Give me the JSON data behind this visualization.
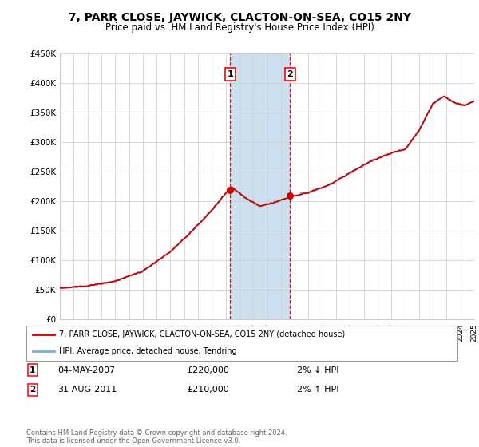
{
  "title": "7, PARR CLOSE, JAYWICK, CLACTON-ON-SEA, CO15 2NY",
  "subtitle": "Price paid vs. HM Land Registry's House Price Index (HPI)",
  "ylim": [
    0,
    450000
  ],
  "yticks": [
    0,
    50000,
    100000,
    150000,
    200000,
    250000,
    300000,
    350000,
    400000,
    450000
  ],
  "ytick_labels": [
    "£0",
    "£50K",
    "£100K",
    "£150K",
    "£200K",
    "£250K",
    "£300K",
    "£350K",
    "£400K",
    "£450K"
  ],
  "x_start_year": 1995,
  "x_end_year": 2025,
  "transaction1_year": 2007.34,
  "transaction2_year": 2011.66,
  "transaction1_price": 220000,
  "transaction2_price": 210000,
  "transaction1_label": "04-MAY-2007",
  "transaction2_label": "31-AUG-2011",
  "transaction1_pct": "2% ↓ HPI",
  "transaction2_pct": "2% ↑ HPI",
  "line_color_red": "#cc0000",
  "line_color_blue": "#7ab0d4",
  "shade_color": "#cce0f0",
  "grid_color": "#cccccc",
  "background_color": "#ffffff",
  "legend_label_red": "7, PARR CLOSE, JAYWICK, CLACTON-ON-SEA, CO15 2NY (detached house)",
  "legend_label_blue": "HPI: Average price, detached house, Tendring",
  "footer_text": "Contains HM Land Registry data © Crown copyright and database right 2024.\nThis data is licensed under the Open Government Licence v3.0.",
  "key_years": [
    1995.0,
    1997.0,
    1999.0,
    2001.0,
    2003.0,
    2004.5,
    2006.0,
    2007.4,
    2008.5,
    2009.5,
    2010.5,
    2011.7,
    2013.0,
    2014.5,
    2016.0,
    2017.5,
    2019.0,
    2020.0,
    2021.0,
    2022.0,
    2022.8,
    2023.5,
    2024.3,
    2025.0
  ],
  "key_vals": [
    53000,
    57000,
    65000,
    82000,
    115000,
    148000,
    185000,
    225000,
    205000,
    192000,
    198000,
    208000,
    215000,
    228000,
    248000,
    268000,
    282000,
    288000,
    320000,
    365000,
    378000,
    368000,
    362000,
    370000
  ]
}
